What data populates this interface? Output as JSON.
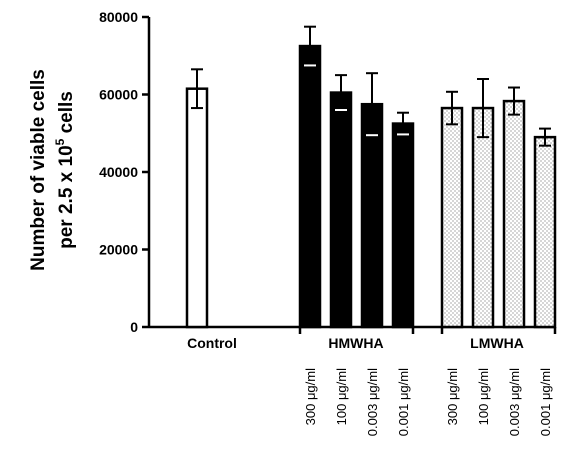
{
  "chart_data": {
    "type": "bar",
    "ylabel_line1": "Number of viable cells",
    "ylabel_line2_prefix": "per 2.5 x 10",
    "ylabel_line2_sup": "5",
    "ylabel_line2_suffix": " cells",
    "ylim": [
      0,
      80000
    ],
    "yticks": [
      0,
      20000,
      40000,
      60000,
      80000
    ],
    "ytick_labels": [
      "0",
      "20000",
      "40000",
      "60000",
      "80000"
    ],
    "groups": [
      {
        "label": "Control",
        "fill": "white",
        "bars": [
          {
            "category": "",
            "value": 61500,
            "error": 5000
          }
        ]
      },
      {
        "label": "HMWHA",
        "fill": "black",
        "bars": [
          {
            "category": "300 μg/ml",
            "value": 72500,
            "error": 5000
          },
          {
            "category": "100 μg/ml",
            "value": 60500,
            "error": 4500
          },
          {
            "category": "0.003 μg/ml",
            "value": 57500,
            "error": 8000
          },
          {
            "category": "0.001 μg/ml",
            "value": 52500,
            "error": 2800
          }
        ]
      },
      {
        "label": "LMWHA",
        "fill": "dotted",
        "bars": [
          {
            "category": "300 μg/ml",
            "value": 56500,
            "error": 4200
          },
          {
            "category": "100 μg/ml",
            "value": 56500,
            "error": 7500
          },
          {
            "category": "0.003 μg/ml",
            "value": 58300,
            "error": 3500
          },
          {
            "category": "0.001 μg/ml",
            "value": 49000,
            "error": 2200
          }
        ]
      }
    ],
    "colors": {
      "bar_stroke": "#000000",
      "dark_fill": "#000000",
      "light_fill": "#ffffff",
      "dot_color": "#6f6f6f"
    }
  }
}
